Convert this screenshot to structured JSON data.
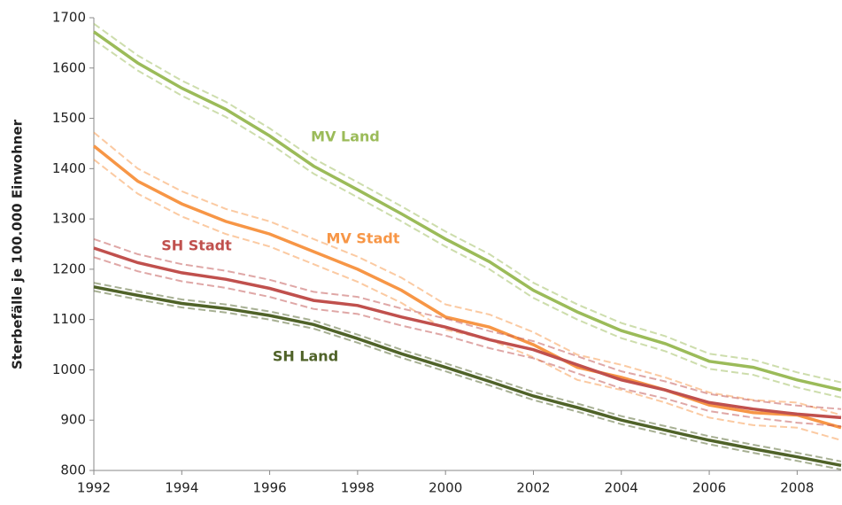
{
  "chart_data": {
    "type": "line",
    "y_label": "Sterbefälle je 100.000 Einwohner",
    "x": [
      1992,
      1993,
      1994,
      1995,
      1996,
      1997,
      1998,
      1999,
      2000,
      2001,
      2002,
      2003,
      2004,
      2005,
      2006,
      2007,
      2008,
      2009
    ],
    "xlim": [
      1992,
      2009
    ],
    "xticks": [
      1992,
      1994,
      1996,
      1998,
      2000,
      2002,
      2004,
      2006,
      2008
    ],
    "ylim": [
      800,
      1700
    ],
    "yticks": [
      800,
      900,
      1000,
      1100,
      1200,
      1300,
      1400,
      1500,
      1600,
      1700
    ],
    "series": [
      {
        "name": "MV Land",
        "color": "#9bbb59",
        "values": [
          1672,
          1610,
          1560,
          1518,
          1465,
          1405,
          1358,
          1310,
          1260,
          1215,
          1158,
          1115,
          1078,
          1052,
          1017,
          1005,
          980,
          960
        ],
        "upper": [
          1688,
          1625,
          1575,
          1533,
          1480,
          1420,
          1373,
          1325,
          1275,
          1230,
          1173,
          1130,
          1093,
          1067,
          1032,
          1020,
          995,
          975
        ],
        "lower": [
          1656,
          1595,
          1545,
          1503,
          1450,
          1390,
          1343,
          1295,
          1245,
          1200,
          1143,
          1100,
          1063,
          1037,
          1002,
          990,
          965,
          945
        ]
      },
      {
        "name": "MV Stadt",
        "color": "#f79646",
        "values": [
          1445,
          1375,
          1330,
          1295,
          1270,
          1235,
          1200,
          1158,
          1105,
          1085,
          1050,
          1005,
          985,
          960,
          930,
          915,
          910,
          885
        ],
        "upper": [
          1472,
          1400,
          1355,
          1320,
          1295,
          1260,
          1225,
          1183,
          1130,
          1110,
          1075,
          1030,
          1010,
          985,
          955,
          940,
          935,
          910
        ],
        "lower": [
          1418,
          1350,
          1305,
          1270,
          1245,
          1210,
          1175,
          1133,
          1080,
          1060,
          1025,
          980,
          960,
          935,
          905,
          890,
          885,
          860
        ]
      },
      {
        "name": "SH Stadt",
        "color": "#c0504d",
        "values": [
          1242,
          1213,
          1193,
          1180,
          1162,
          1138,
          1128,
          1105,
          1085,
          1060,
          1040,
          1010,
          980,
          960,
          935,
          922,
          912,
          905
        ],
        "upper": [
          1260,
          1230,
          1210,
          1197,
          1179,
          1155,
          1145,
          1122,
          1102,
          1077,
          1057,
          1027,
          997,
          977,
          952,
          939,
          929,
          922
        ],
        "lower": [
          1224,
          1196,
          1176,
          1163,
          1145,
          1121,
          1111,
          1088,
          1068,
          1043,
          1023,
          993,
          963,
          943,
          918,
          905,
          895,
          888
        ]
      },
      {
        "name": "SH Land",
        "color": "#4f6228",
        "values": [
          1165,
          1148,
          1132,
          1122,
          1108,
          1090,
          1062,
          1032,
          1005,
          977,
          948,
          925,
          900,
          880,
          860,
          843,
          827,
          810
        ],
        "upper": [
          1173,
          1156,
          1140,
          1130,
          1116,
          1098,
          1070,
          1040,
          1013,
          985,
          956,
          933,
          908,
          888,
          868,
          851,
          835,
          818
        ],
        "lower": [
          1157,
          1140,
          1124,
          1114,
          1100,
          1082,
          1054,
          1024,
          997,
          969,
          940,
          917,
          892,
          872,
          852,
          835,
          819,
          802
        ]
      }
    ]
  }
}
